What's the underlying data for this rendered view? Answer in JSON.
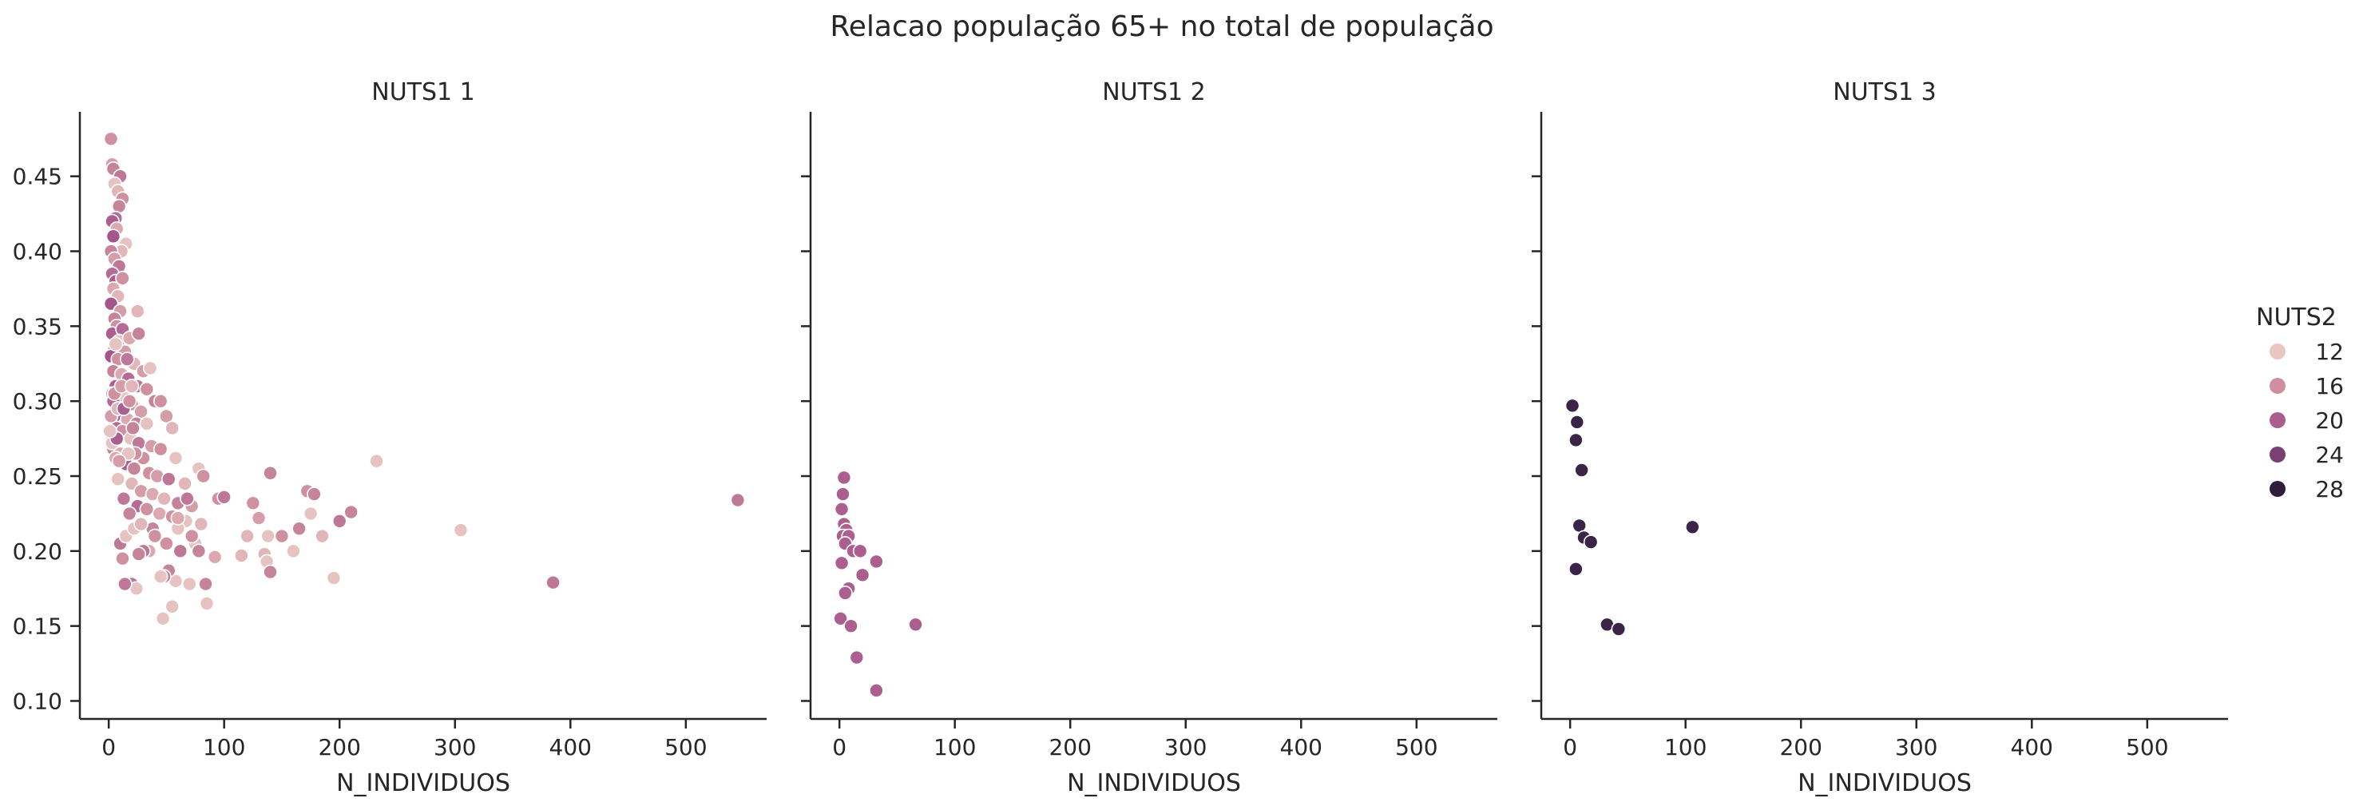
{
  "chart_data": {
    "type": "scatter",
    "title": "Relacao população 65+ no total de população",
    "xlabel": "N_INDIVIDUOS",
    "ylabel": "",
    "xlim": [
      -25,
      570
    ],
    "ylim": [
      0.088,
      0.493
    ],
    "xticks": [
      0,
      100,
      200,
      300,
      400,
      500
    ],
    "yticks": [
      0.1,
      0.15,
      0.2,
      0.25,
      0.3,
      0.35,
      0.4,
      0.45
    ],
    "ytick_labels": [
      "0.10",
      "0.15",
      "0.20",
      "0.25",
      "0.30",
      "0.35",
      "0.40",
      "0.45"
    ],
    "grid": false,
    "legend": {
      "title": "NUTS2",
      "placement": "right",
      "entries": [
        {
          "label": "12",
          "color": "#e9c6c0"
        },
        {
          "label": "16",
          "color": "#cf8fa0"
        },
        {
          "label": "20",
          "color": "#ab5e8e"
        },
        {
          "label": "24",
          "color": "#7a3f73"
        },
        {
          "label": "28",
          "color": "#2e1e3b"
        }
      ]
    },
    "color_scale": {
      "min": 11,
      "max": 30,
      "stops": [
        "#ecd0c8",
        "#d193a1",
        "#a8598c",
        "#6b3a6e",
        "#2d1e3e"
      ]
    },
    "facets": [
      {
        "title": "NUTS1 1",
        "points": [
          [
            2,
            0.475,
            16
          ],
          [
            3,
            0.458,
            15
          ],
          [
            4,
            0.455,
            17
          ],
          [
            10,
            0.45,
            18
          ],
          [
            5,
            0.445,
            12
          ],
          [
            8,
            0.44,
            13
          ],
          [
            12,
            0.435,
            16
          ],
          [
            9,
            0.43,
            17
          ],
          [
            6,
            0.422,
            19
          ],
          [
            3,
            0.42,
            20
          ],
          [
            7,
            0.415,
            14
          ],
          [
            15,
            0.405,
            12
          ],
          [
            4,
            0.41,
            21
          ],
          [
            11,
            0.4,
            13
          ],
          [
            2,
            0.4,
            17
          ],
          [
            5,
            0.395,
            15
          ],
          [
            9,
            0.39,
            18
          ],
          [
            3,
            0.385,
            19
          ],
          [
            6,
            0.38,
            20
          ],
          [
            12,
            0.382,
            16
          ],
          [
            4,
            0.375,
            14
          ],
          [
            8,
            0.37,
            13
          ],
          [
            2,
            0.365,
            21
          ],
          [
            10,
            0.36,
            15
          ],
          [
            25,
            0.36,
            13
          ],
          [
            5,
            0.355,
            17
          ],
          [
            7,
            0.35,
            16
          ],
          [
            3,
            0.345,
            20
          ],
          [
            12,
            0.348,
            19
          ],
          [
            9,
            0.34,
            12
          ],
          [
            18,
            0.342,
            14
          ],
          [
            26,
            0.345,
            17
          ],
          [
            5,
            0.335,
            18
          ],
          [
            14,
            0.333,
            15
          ],
          [
            2,
            0.33,
            21
          ],
          [
            8,
            0.328,
            16
          ],
          [
            22,
            0.325,
            13
          ],
          [
            30,
            0.32,
            15
          ],
          [
            36,
            0.322,
            12
          ],
          [
            4,
            0.32,
            17
          ],
          [
            11,
            0.318,
            14
          ],
          [
            17,
            0.315,
            19
          ],
          [
            6,
            0.31,
            20
          ],
          [
            25,
            0.31,
            18
          ],
          [
            33,
            0.308,
            16
          ],
          [
            40,
            0.3,
            17
          ],
          [
            3,
            0.305,
            13
          ],
          [
            14,
            0.302,
            12
          ],
          [
            20,
            0.298,
            16
          ],
          [
            9,
            0.295,
            18
          ],
          [
            28,
            0.293,
            15
          ],
          [
            45,
            0.3,
            16
          ],
          [
            5,
            0.29,
            21
          ],
          [
            16,
            0.288,
            14
          ],
          [
            24,
            0.285,
            17
          ],
          [
            33,
            0.285,
            12
          ],
          [
            50,
            0.29,
            15
          ],
          [
            55,
            0.282,
            13
          ],
          [
            7,
            0.282,
            19
          ],
          [
            12,
            0.28,
            16
          ],
          [
            2,
            0.278,
            21
          ],
          [
            19,
            0.275,
            12
          ],
          [
            26,
            0.272,
            18
          ],
          [
            37,
            0.27,
            15
          ],
          [
            45,
            0.268,
            16
          ],
          [
            58,
            0.262,
            12
          ],
          [
            4,
            0.268,
            17
          ],
          [
            10,
            0.265,
            14
          ],
          [
            30,
            0.262,
            16
          ],
          [
            15,
            0.258,
            20
          ],
          [
            22,
            0.255,
            17
          ],
          [
            35,
            0.252,
            16
          ],
          [
            42,
            0.25,
            15
          ],
          [
            52,
            0.248,
            18
          ],
          [
            66,
            0.245,
            13
          ],
          [
            78,
            0.255,
            12
          ],
          [
            82,
            0.25,
            16
          ],
          [
            8,
            0.248,
            12
          ],
          [
            20,
            0.245,
            13
          ],
          [
            28,
            0.24,
            15
          ],
          [
            38,
            0.238,
            14
          ],
          [
            48,
            0.235,
            13
          ],
          [
            60,
            0.232,
            17
          ],
          [
            72,
            0.23,
            15
          ],
          [
            13,
            0.235,
            18
          ],
          [
            25,
            0.23,
            19
          ],
          [
            33,
            0.228,
            16
          ],
          [
            44,
            0.225,
            14
          ],
          [
            55,
            0.223,
            16
          ],
          [
            67,
            0.22,
            12
          ],
          [
            80,
            0.218,
            13
          ],
          [
            95,
            0.235,
            16
          ],
          [
            100,
            0.236,
            18
          ],
          [
            125,
            0.232,
            16
          ],
          [
            140,
            0.252,
            17
          ],
          [
            130,
            0.222,
            15
          ],
          [
            150,
            0.21,
            16
          ],
          [
            160,
            0.2,
            12
          ],
          [
            165,
            0.215,
            17
          ],
          [
            172,
            0.24,
            16
          ],
          [
            178,
            0.238,
            17
          ],
          [
            175,
            0.225,
            12
          ],
          [
            185,
            0.21,
            13
          ],
          [
            195,
            0.182,
            12
          ],
          [
            200,
            0.22,
            18
          ],
          [
            210,
            0.226,
            17
          ],
          [
            232,
            0.26,
            12
          ],
          [
            305,
            0.214,
            12
          ],
          [
            385,
            0.179,
            18
          ],
          [
            545,
            0.234,
            18
          ],
          [
            135,
            0.198,
            13
          ],
          [
            138,
            0.21,
            12
          ],
          [
            137,
            0.193,
            12
          ],
          [
            140,
            0.186,
            17
          ],
          [
            115,
            0.197,
            13
          ],
          [
            120,
            0.21,
            13
          ],
          [
            92,
            0.196,
            14
          ],
          [
            84,
            0.178,
            17
          ],
          [
            85,
            0.165,
            12
          ],
          [
            70,
            0.178,
            12
          ],
          [
            58,
            0.18,
            12
          ],
          [
            52,
            0.187,
            17
          ],
          [
            48,
            0.183,
            17
          ],
          [
            45,
            0.183,
            12
          ],
          [
            47,
            0.155,
            12
          ],
          [
            55,
            0.163,
            12
          ],
          [
            35,
            0.2,
            14
          ],
          [
            38,
            0.215,
            17
          ],
          [
            30,
            0.2,
            18
          ],
          [
            26,
            0.198,
            17
          ],
          [
            20,
            0.178,
            18
          ],
          [
            24,
            0.175,
            12
          ],
          [
            14,
            0.178,
            18
          ],
          [
            12,
            0.195,
            16
          ],
          [
            10,
            0.205,
            18
          ],
          [
            15,
            0.21,
            12
          ],
          [
            18,
            0.225,
            17
          ],
          [
            22,
            0.215,
            12
          ],
          [
            28,
            0.218,
            13
          ],
          [
            40,
            0.21,
            16
          ],
          [
            50,
            0.205,
            16
          ],
          [
            60,
            0.215,
            12
          ],
          [
            62,
            0.2,
            18
          ],
          [
            75,
            0.205,
            12
          ],
          [
            78,
            0.2,
            17
          ],
          [
            68,
            0.235,
            18
          ],
          [
            72,
            0.21,
            16
          ],
          [
            60,
            0.222,
            14
          ],
          [
            2,
            0.29,
            15
          ],
          [
            4,
            0.3,
            19
          ],
          [
            3,
            0.272,
            12
          ],
          [
            6,
            0.262,
            14
          ],
          [
            7,
            0.275,
            20
          ],
          [
            1,
            0.28,
            12
          ],
          [
            5,
            0.305,
            16
          ],
          [
            8,
            0.295,
            13
          ],
          [
            11,
            0.31,
            15
          ],
          [
            13,
            0.295,
            20
          ],
          [
            18,
            0.3,
            16
          ],
          [
            21,
            0.282,
            17
          ],
          [
            6,
            0.338,
            12
          ],
          [
            16,
            0.328,
            18
          ],
          [
            20,
            0.31,
            13
          ],
          [
            23,
            0.265,
            16
          ],
          [
            17,
            0.265,
            12
          ],
          [
            9,
            0.26,
            15
          ]
        ]
      },
      {
        "title": "NUTS1 2",
        "points": [
          [
            4,
            0.249,
            20
          ],
          [
            3,
            0.238,
            20
          ],
          [
            2,
            0.228,
            20
          ],
          [
            4,
            0.218,
            20
          ],
          [
            6,
            0.214,
            20
          ],
          [
            3,
            0.21,
            20
          ],
          [
            8,
            0.21,
            20
          ],
          [
            5,
            0.205,
            20
          ],
          [
            12,
            0.2,
            20
          ],
          [
            18,
            0.2,
            20
          ],
          [
            32,
            0.193,
            20
          ],
          [
            2,
            0.192,
            20
          ],
          [
            20,
            0.184,
            20
          ],
          [
            8,
            0.175,
            20
          ],
          [
            5,
            0.172,
            20
          ],
          [
            1,
            0.155,
            20
          ],
          [
            10,
            0.15,
            20
          ],
          [
            66,
            0.151,
            20
          ],
          [
            15,
            0.129,
            20
          ],
          [
            32,
            0.107,
            20
          ]
        ]
      },
      {
        "title": "NUTS1 3",
        "points": [
          [
            2,
            0.297,
            29
          ],
          [
            6,
            0.286,
            29
          ],
          [
            5,
            0.274,
            29
          ],
          [
            10,
            0.254,
            29
          ],
          [
            8,
            0.217,
            29
          ],
          [
            12,
            0.209,
            29
          ],
          [
            18,
            0.206,
            29
          ],
          [
            5,
            0.188,
            29
          ],
          [
            106,
            0.216,
            29
          ],
          [
            32,
            0.151,
            29
          ],
          [
            42,
            0.148,
            29
          ]
        ]
      }
    ]
  }
}
